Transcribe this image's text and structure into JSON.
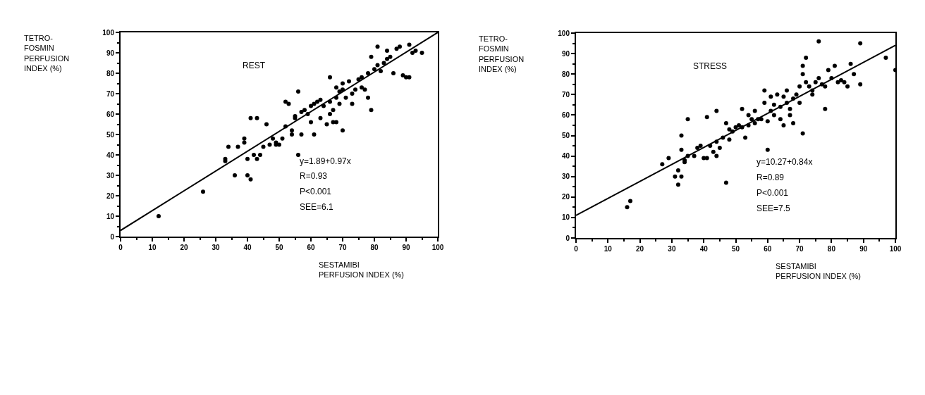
{
  "chart_data": [
    {
      "type": "scatter",
      "title": "REST",
      "xlabel": "SESTAMIBI\nPERFUSION INDEX (%)",
      "ylabel": "TETRO-\nFOSMIN\nPERFUSION\nINDEX (%)",
      "annotations": [
        "y=1.89+0.97x",
        "R=0.93",
        "P<0.001",
        "SEE=6.1"
      ],
      "xlim": [
        0,
        100
      ],
      "ylim": [
        0,
        100
      ],
      "xticks": [
        0,
        10,
        20,
        30,
        40,
        50,
        60,
        70,
        80,
        90,
        100
      ],
      "yticks": [
        0,
        10,
        20,
        30,
        40,
        50,
        60,
        70,
        80,
        90,
        100
      ],
      "grid": false,
      "legend": false,
      "marker": "circle",
      "series": [
        {
          "color": "#000000",
          "x": [
            12,
            26,
            33,
            33,
            34,
            36,
            37,
            39,
            39,
            40,
            40,
            41,
            41,
            43,
            42,
            43,
            44,
            45,
            46,
            47,
            48,
            49,
            49,
            50,
            51,
            52,
            52,
            53,
            54,
            54,
            55,
            55,
            56,
            56,
            57,
            57,
            58,
            59,
            60,
            60,
            61,
            61,
            62,
            63,
            63,
            64,
            65,
            66,
            66,
            66,
            67,
            67,
            68,
            68,
            68,
            69,
            69,
            70,
            70,
            70,
            71,
            72,
            73,
            73,
            74,
            75,
            76,
            76,
            77,
            78,
            78,
            79,
            80,
            79,
            81,
            82,
            83,
            84,
            85,
            86,
            87,
            88,
            89,
            90,
            91,
            91,
            92,
            93,
            95,
            84,
            81
          ],
          "values": [
            10,
            22,
            37,
            38,
            44,
            30,
            44,
            48,
            46,
            38,
            30,
            28,
            58,
            58,
            40,
            38,
            40,
            44,
            55,
            45,
            48,
            46,
            45,
            45,
            48,
            54,
            66,
            65,
            50,
            52,
            58,
            59,
            40,
            71,
            50,
            61,
            62,
            60,
            56,
            64,
            65,
            50,
            66,
            67,
            58,
            64,
            55,
            78,
            66,
            60,
            62,
            56,
            56,
            73,
            68,
            71,
            65,
            52,
            72,
            75,
            68,
            76,
            70,
            65,
            72,
            77,
            78,
            73,
            72,
            80,
            68,
            88,
            82,
            62,
            93,
            81,
            85,
            87,
            88,
            80,
            92,
            93,
            79,
            78,
            78,
            94,
            90,
            91,
            90,
            91,
            84
          ]
        },
        {
          "type": "line",
          "color": "#000000",
          "marker": "none",
          "x": [
            0,
            100
          ],
          "values": [
            3,
            100
          ]
        }
      ]
    },
    {
      "type": "scatter",
      "title": "STRESS",
      "xlabel": "SESTAMIBI\nPERFUSION INDEX (%)",
      "ylabel": "TETRO-\nFOSMIN\nPERFUSION\nINDEX (%)",
      "annotations": [
        "y=10.27+0.84x",
        "R=0.89",
        "P<0.001",
        "SEE=7.5"
      ],
      "xlim": [
        0,
        100
      ],
      "ylim": [
        0,
        100
      ],
      "xticks": [
        0,
        10,
        20,
        30,
        40,
        50,
        60,
        70,
        80,
        90,
        100
      ],
      "yticks": [
        0,
        10,
        20,
        30,
        40,
        50,
        60,
        70,
        80,
        90,
        100
      ],
      "grid": false,
      "legend": false,
      "marker": "circle",
      "series": [
        {
          "color": "#000000",
          "x": [
            16,
            17,
            27,
            29,
            31,
            32,
            32,
            33,
            33,
            33,
            34,
            34,
            35,
            35,
            37,
            38,
            39,
            40,
            41,
            41,
            42,
            43,
            44,
            44,
            44,
            45,
            46,
            47,
            47,
            48,
            48,
            49,
            50,
            51,
            52,
            52,
            53,
            54,
            54,
            55,
            56,
            56,
            57,
            58,
            59,
            59,
            60,
            60,
            61,
            61,
            62,
            62,
            63,
            64,
            64,
            65,
            65,
            66,
            66,
            67,
            67,
            68,
            68,
            69,
            70,
            70,
            71,
            71,
            71,
            72,
            72,
            73,
            74,
            74,
            75,
            76,
            76,
            77,
            78,
            78,
            79,
            80,
            81,
            82,
            83,
            84,
            85,
            86,
            87,
            89,
            89,
            97,
            100
          ],
          "values": [
            15,
            18,
            36,
            39,
            30,
            26,
            33,
            30,
            43,
            50,
            38,
            37,
            40,
            58,
            40,
            44,
            45,
            39,
            39,
            59,
            45,
            42,
            40,
            47,
            62,
            44,
            49,
            27,
            56,
            48,
            53,
            52,
            54,
            55,
            54,
            63,
            49,
            55,
            60,
            58,
            62,
            56,
            58,
            58,
            66,
            72,
            57,
            43,
            62,
            69,
            65,
            60,
            70,
            64,
            58,
            55,
            69,
            72,
            66,
            63,
            60,
            68,
            56,
            70,
            74,
            66,
            80,
            84,
            51,
            76,
            88,
            74,
            72,
            70,
            76,
            96,
            78,
            75,
            74,
            63,
            82,
            78,
            84,
            76,
            77,
            76,
            74,
            85,
            80,
            75,
            95,
            88,
            82
          ]
        },
        {
          "type": "line",
          "color": "#000000",
          "marker": "none",
          "x": [
            0,
            100
          ],
          "values": [
            11,
            94
          ]
        }
      ]
    }
  ]
}
